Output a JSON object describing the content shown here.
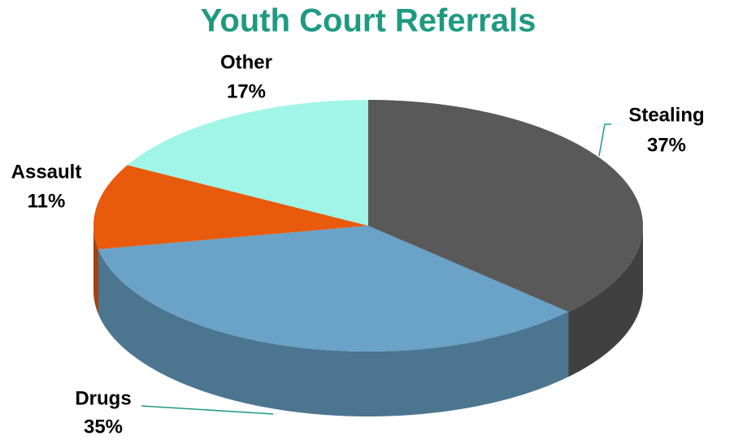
{
  "chart_data": {
    "type": "pie3d",
    "title": "Youth Court Referrals",
    "categories": [
      "Stealing",
      "Drugs",
      "Assault",
      "Other"
    ],
    "values": [
      37,
      35,
      11,
      17
    ],
    "value_labels": [
      "37%",
      "35%",
      "11%",
      "17%"
    ],
    "colors": [
      "#595959",
      "#6aa2c8",
      "#e85a0c",
      "#a0f5e6"
    ]
  }
}
